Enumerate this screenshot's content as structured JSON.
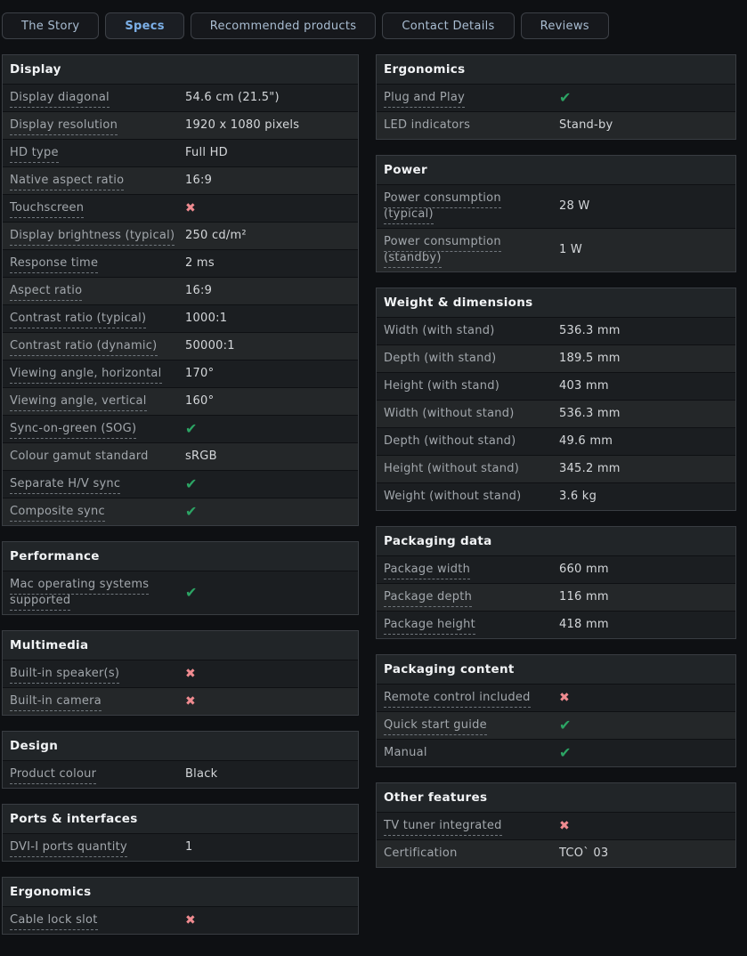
{
  "tabs": [
    {
      "label": "The Story",
      "active": false
    },
    {
      "label": "Specs",
      "active": true
    },
    {
      "label": "Recommended products",
      "active": false
    },
    {
      "label": "Contact Details",
      "active": false
    },
    {
      "label": "Reviews",
      "active": false
    }
  ],
  "colors": {
    "accent_blue": "#7cb0e8",
    "check_green": "#2ca464",
    "cross_red": "#f08b90"
  },
  "icons": {
    "check": "✔",
    "cross": "✖"
  },
  "columns": {
    "left": [
      {
        "title": "Display",
        "rows": [
          {
            "label": "Display diagonal",
            "underline": true,
            "type": "text",
            "value": "54.6 cm (21.5\")"
          },
          {
            "label": "Display resolution",
            "underline": true,
            "type": "text",
            "value": "1920 x 1080 pixels"
          },
          {
            "label": "HD type",
            "underline": true,
            "type": "text",
            "value": "Full HD"
          },
          {
            "label": "Native aspect ratio",
            "underline": true,
            "type": "text",
            "value": "16:9"
          },
          {
            "label": "Touchscreen",
            "underline": true,
            "type": "cross"
          },
          {
            "label": "Display brightness (typical)",
            "underline": true,
            "type": "text",
            "value": "250 cd/m²"
          },
          {
            "label": "Response time",
            "underline": true,
            "type": "text",
            "value": "2 ms"
          },
          {
            "label": "Aspect ratio",
            "underline": true,
            "type": "text",
            "value": "16:9"
          },
          {
            "label": "Contrast ratio (typical)",
            "underline": true,
            "type": "text",
            "value": "1000:1"
          },
          {
            "label": "Contrast ratio (dynamic)",
            "underline": true,
            "type": "text",
            "value": "50000:1"
          },
          {
            "label": "Viewing angle, horizontal",
            "underline": true,
            "type": "text",
            "value": "170°"
          },
          {
            "label": "Viewing angle, vertical",
            "underline": true,
            "type": "text",
            "value": "160°"
          },
          {
            "label": "Sync-on-green (SOG)",
            "underline": true,
            "type": "check"
          },
          {
            "label": "Colour gamut standard",
            "underline": false,
            "type": "text",
            "value": "sRGB"
          },
          {
            "label": "Separate H/V sync",
            "underline": true,
            "type": "check"
          },
          {
            "label": "Composite sync",
            "underline": true,
            "type": "check"
          }
        ]
      },
      {
        "title": "Performance",
        "rows": [
          {
            "label": "Mac operating systems supported",
            "underline": true,
            "type": "check"
          }
        ]
      },
      {
        "title": "Multimedia",
        "rows": [
          {
            "label": "Built-in speaker(s)",
            "underline": true,
            "type": "cross"
          },
          {
            "label": "Built-in camera",
            "underline": true,
            "type": "cross"
          }
        ]
      },
      {
        "title": "Design",
        "rows": [
          {
            "label": "Product colour",
            "underline": true,
            "type": "text",
            "value": "Black"
          }
        ]
      },
      {
        "title": "Ports & interfaces",
        "rows": [
          {
            "label": "DVI-I ports quantity",
            "underline": true,
            "type": "text",
            "value": "1"
          }
        ]
      },
      {
        "title": "Ergonomics",
        "rows": [
          {
            "label": "Cable lock slot",
            "underline": true,
            "type": "cross"
          }
        ]
      }
    ],
    "right": [
      {
        "title": "Ergonomics",
        "rows": [
          {
            "label": "Plug and Play",
            "underline": true,
            "type": "check"
          },
          {
            "label": "LED indicators",
            "underline": false,
            "type": "text",
            "value": "Stand-by"
          }
        ]
      },
      {
        "title": "Power",
        "rows": [
          {
            "label": "Power consumption (typical)",
            "underline": true,
            "type": "text",
            "value": "28 W"
          },
          {
            "label": "Power consumption (standby)",
            "underline": true,
            "type": "text",
            "value": "1 W"
          }
        ]
      },
      {
        "title": "Weight & dimensions",
        "rows": [
          {
            "label": "Width (with stand)",
            "underline": false,
            "type": "text",
            "value": "536.3 mm"
          },
          {
            "label": "Depth (with stand)",
            "underline": false,
            "type": "text",
            "value": "189.5 mm"
          },
          {
            "label": "Height (with stand)",
            "underline": false,
            "type": "text",
            "value": "403 mm"
          },
          {
            "label": "Width (without stand)",
            "underline": false,
            "type": "text",
            "value": "536.3 mm"
          },
          {
            "label": "Depth (without stand)",
            "underline": false,
            "type": "text",
            "value": "49.6 mm"
          },
          {
            "label": "Height (without stand)",
            "underline": false,
            "type": "text",
            "value": "345.2 mm"
          },
          {
            "label": "Weight (without stand)",
            "underline": false,
            "type": "text",
            "value": "3.6 kg"
          }
        ]
      },
      {
        "title": "Packaging data",
        "rows": [
          {
            "label": "Package width",
            "underline": true,
            "type": "text",
            "value": "660 mm"
          },
          {
            "label": "Package depth",
            "underline": true,
            "type": "text",
            "value": "116 mm"
          },
          {
            "label": "Package height",
            "underline": true,
            "type": "text",
            "value": "418 mm"
          }
        ]
      },
      {
        "title": "Packaging content",
        "rows": [
          {
            "label": "Remote control included",
            "underline": true,
            "type": "cross"
          },
          {
            "label": "Quick start guide",
            "underline": true,
            "type": "check"
          },
          {
            "label": "Manual",
            "underline": false,
            "type": "check"
          }
        ]
      },
      {
        "title": "Other features",
        "rows": [
          {
            "label": "TV tuner integrated",
            "underline": true,
            "type": "cross"
          },
          {
            "label": "Certification",
            "underline": false,
            "type": "text",
            "value": "TCO` 03"
          }
        ]
      }
    ]
  }
}
